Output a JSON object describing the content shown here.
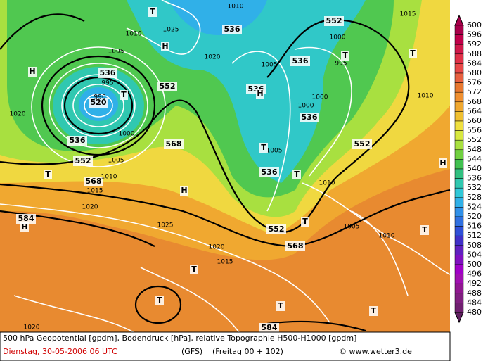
{
  "colorbar": {
    "levels": [
      600,
      596,
      592,
      588,
      584,
      580,
      576,
      572,
      568,
      564,
      560,
      556,
      552,
      548,
      544,
      540,
      536,
      532,
      528,
      524,
      520,
      516,
      512,
      508,
      504,
      500,
      496,
      492,
      488,
      484,
      480
    ],
    "colors": [
      "#a8004a",
      "#c0004a",
      "#d0184a",
      "#e03048",
      "#e84848",
      "#e86040",
      "#e87830",
      "#f09030",
      "#f0a830",
      "#f0c030",
      "#f0e040",
      "#d8e840",
      "#a8e040",
      "#70d040",
      "#40c050",
      "#30c080",
      "#30c8b0",
      "#30c8d8",
      "#30b0e8",
      "#3090e8",
      "#3070e0",
      "#3050d8",
      "#4030c8",
      "#6020c0",
      "#8010c0",
      "#a000c8",
      "#a010b0",
      "#901890",
      "#802080",
      "#702070",
      "#602060"
    ]
  },
  "caption": {
    "line1": "500 hPa Geopotential [gpdm], Bodendruck [hPa], relative Topographie H500-H1000 [gpdm]",
    "date": "Dienstag, 30-05-2006  06 UTC",
    "model": "(GFS)",
    "run": "(Freitag 00 + 102)",
    "copyright": "© www.wetter3.de"
  },
  "map_labels": [
    "536",
    "552",
    "536",
    "520",
    "536",
    "552",
    "568",
    "568",
    "552",
    "536",
    "536",
    "536",
    "536",
    "552",
    "568",
    "552",
    "584",
    "584",
    "1020",
    "1010",
    "1025",
    "1005",
    "995",
    "990",
    "1000",
    "1005",
    "1010",
    "1015",
    "1020",
    "1025",
    "1010",
    "1020",
    "1005",
    "1000",
    "995",
    "1000",
    "1005",
    "1010",
    "1015",
    "1010",
    "1000",
    "1005",
    "1010",
    "1020",
    "1015",
    "1020",
    "H",
    "H",
    "H",
    "H",
    "H",
    "H",
    "T",
    "T",
    "T",
    "T",
    "T",
    "T",
    "T",
    "T",
    "T",
    "T",
    "T",
    "T",
    "T"
  ]
}
